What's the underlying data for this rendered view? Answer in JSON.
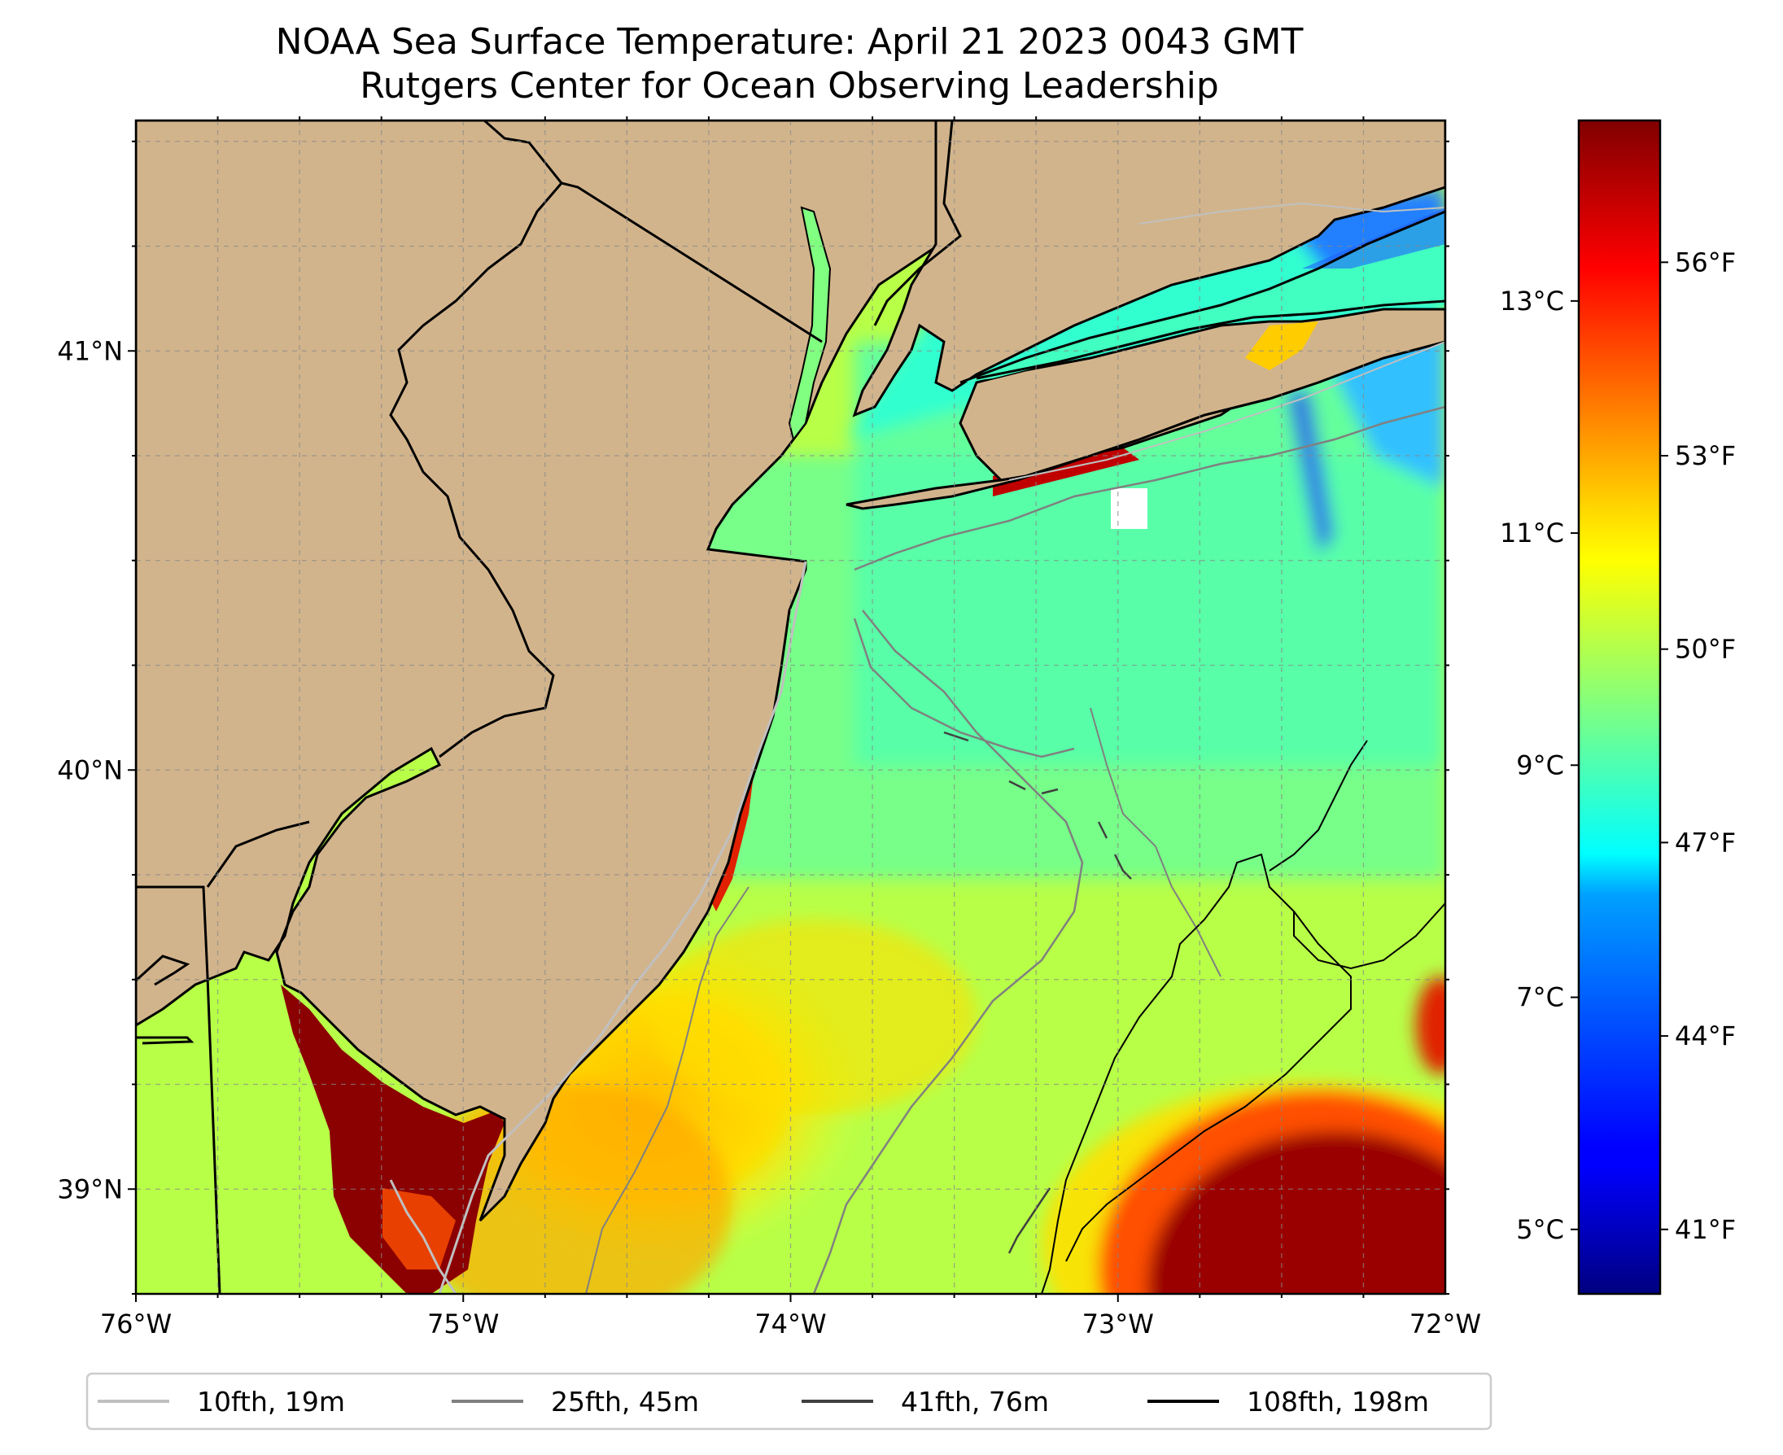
{
  "title": {
    "line1": "NOAA Sea Surface Temperature: April 21 2023 0043 GMT",
    "line2": "Rutgers Center for Ocean Observing Leadership"
  },
  "map": {
    "lon_range": [
      -76.0,
      -72.0
    ],
    "lat_range": [
      38.75,
      41.55
    ],
    "lon_ticks": [
      {
        "value": -76,
        "label": "76°W"
      },
      {
        "value": -75,
        "label": "75°W"
      },
      {
        "value": -74,
        "label": "74°W"
      },
      {
        "value": -73,
        "label": "73°W"
      },
      {
        "value": -72,
        "label": "72°W"
      }
    ],
    "lat_ticks": [
      {
        "value": 41,
        "label": "41°N"
      },
      {
        "value": 40,
        "label": "40°N"
      },
      {
        "value": 39,
        "label": "39°N"
      }
    ],
    "land_color": "#d2b48c",
    "gridlines": true
  },
  "colorbar": {
    "colormap": "jet",
    "celsius_ticks": [
      {
        "value": 5,
        "label": "5°C"
      },
      {
        "value": 7,
        "label": "7°C"
      },
      {
        "value": 9,
        "label": "9°C"
      },
      {
        "value": 11,
        "label": "11°C"
      },
      {
        "value": 13,
        "label": "13°C"
      }
    ],
    "fahrenheit_ticks": [
      {
        "value": 41,
        "label": "41°F"
      },
      {
        "value": 44,
        "label": "44°F"
      },
      {
        "value": 47,
        "label": "47°F"
      },
      {
        "value": 50,
        "label": "50°F"
      },
      {
        "value": 53,
        "label": "53°F"
      },
      {
        "value": 56,
        "label": "56°F"
      }
    ]
  },
  "legend": {
    "placement": "bottom",
    "items": [
      {
        "label": "10fth, 19m",
        "color": "#c0c0c0"
      },
      {
        "label": "25fth, 45m",
        "color": "#808080"
      },
      {
        "label": "41fth, 76m",
        "color": "#404040"
      },
      {
        "label": "108fth, 198m",
        "color": "#000000"
      }
    ]
  }
}
